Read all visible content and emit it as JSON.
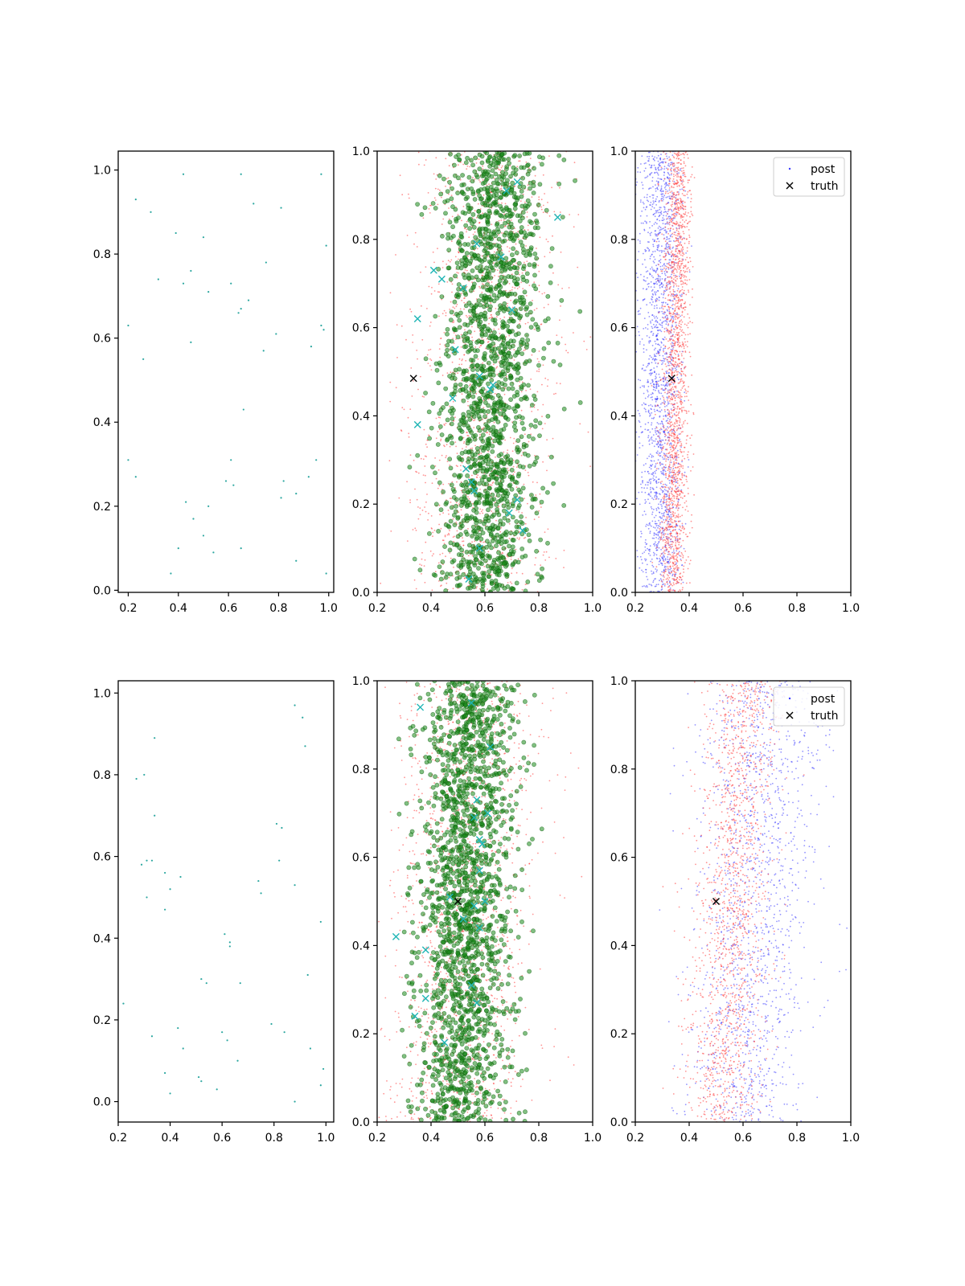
{
  "figure": {
    "layout": "2 rows x 3 columns of scatter panels"
  },
  "colors": {
    "observed": "#2ca7a0",
    "prior": "#ff3b3b",
    "samples": "#1a8a1a",
    "sample_markers": "#1fb5b5",
    "post": "#3b3bff",
    "truth": "#000000"
  },
  "chart_data": [
    {
      "type": "scatter",
      "panel": "row1-col1",
      "title": "",
      "xlabel": "",
      "ylabel": "",
      "xlim": [
        0.16,
        1.02
      ],
      "ylim": [
        -0.005,
        1.045
      ],
      "xticks": [
        "0.2",
        "0.4",
        "0.6",
        "0.8",
        "1.0"
      ],
      "yticks": [
        "0.0",
        "0.2",
        "0.4",
        "0.6",
        "0.8",
        "1.0"
      ],
      "grid": false,
      "series": [
        {
          "role": "observed",
          "x": [
            0.42,
            0.65,
            0.97,
            0.23,
            0.29,
            0.7,
            0.81,
            0.39,
            0.5,
            0.99,
            0.32,
            0.45,
            0.42,
            0.61,
            0.52,
            0.65,
            0.75,
            0.68,
            0.64,
            0.2,
            0.79,
            0.98,
            0.45,
            0.93,
            0.97,
            0.74,
            0.26,
            0.66,
            0.61,
            0.95,
            0.2,
            0.92,
            0.82,
            0.23,
            0.59,
            0.62,
            0.87,
            0.81,
            0.43,
            0.52,
            0.46,
            0.5,
            0.4,
            0.54,
            0.65,
            0.87,
            0.37,
            0.99
          ],
          "y": [
            0.99,
            0.99,
            0.99,
            0.93,
            0.9,
            0.92,
            0.91,
            0.85,
            0.84,
            0.82,
            0.74,
            0.76,
            0.73,
            0.73,
            0.71,
            0.67,
            0.78,
            0.69,
            0.66,
            0.63,
            0.61,
            0.62,
            0.59,
            0.58,
            0.63,
            0.57,
            0.55,
            0.43,
            0.31,
            0.31,
            0.31,
            0.27,
            0.26,
            0.27,
            0.26,
            0.25,
            0.23,
            0.22,
            0.21,
            0.2,
            0.17,
            0.13,
            0.1,
            0.09,
            0.1,
            0.07,
            0.04,
            0.04
          ]
        }
      ]
    },
    {
      "type": "scatter",
      "panel": "row1-col2",
      "title": "",
      "xlabel": "",
      "ylabel": "",
      "xlim": [
        0.2,
        1.0
      ],
      "ylim": [
        0.0,
        1.0
      ],
      "xticks": [
        "0.2",
        "0.4",
        "0.6",
        "0.8",
        "1.0"
      ],
      "yticks": [
        "0.0",
        "0.2",
        "0.4",
        "0.6",
        "0.8",
        "1.0"
      ],
      "grid": false,
      "series": [
        {
          "role": "prior",
          "distribution": {
            "x_mean": 0.6,
            "x_sd": 0.13,
            "y_range": [
              0.0,
              1.0
            ],
            "n": 1600,
            "x_slope": 0.06
          }
        },
        {
          "role": "samples",
          "distribution": {
            "x_mean": 0.62,
            "x_sd": 0.09,
            "y_range": [
              0.0,
              1.0
            ],
            "n": 1700,
            "x_slope": 0.05
          }
        },
        {
          "role": "sample_markers",
          "x": [
            0.87,
            0.41,
            0.44,
            0.57,
            0.52,
            0.68,
            0.72,
            0.35,
            0.48,
            0.62,
            0.63,
            0.7,
            0.35,
            0.49,
            0.53,
            0.55,
            0.56,
            0.72,
            0.74,
            0.58,
            0.54,
            0.58,
            0.66,
            0.69
          ],
          "y": [
            0.85,
            0.73,
            0.71,
            0.79,
            0.69,
            0.91,
            0.93,
            0.62,
            0.44,
            0.46,
            0.47,
            0.64,
            0.38,
            0.55,
            0.28,
            0.25,
            0.23,
            0.21,
            0.14,
            0.1,
            0.03,
            0.49,
            0.76,
            0.18
          ]
        },
        {
          "role": "truth",
          "x": [
            0.335
          ],
          "y": [
            0.485
          ]
        }
      ]
    },
    {
      "type": "scatter",
      "panel": "row1-col3",
      "title": "",
      "xlabel": "",
      "ylabel": "",
      "xlim": [
        0.2,
        1.0
      ],
      "ylim": [
        0.0,
        1.0
      ],
      "xticks": [
        "0.2",
        "0.4",
        "0.6",
        "0.8",
        "1.0"
      ],
      "yticks": [
        "0.0",
        "0.2",
        "0.4",
        "0.6",
        "0.8",
        "1.0"
      ],
      "grid": false,
      "legend": {
        "placement": "top-right",
        "entries": [
          {
            "role": "post",
            "label": "post"
          },
          {
            "role": "truth",
            "label": "truth"
          }
        ]
      },
      "series": [
        {
          "role": "post",
          "name": "post",
          "distribution": {
            "x_mean": 0.29,
            "x_sd": 0.04,
            "y_range": [
              0.0,
              1.0
            ],
            "n": 1800,
            "x_slope": 0.0
          }
        },
        {
          "role": "prior",
          "distribution": {
            "x_mean": 0.35,
            "x_sd": 0.025,
            "y_range": [
              0.0,
              1.0
            ],
            "n": 1800,
            "x_slope": 0.02
          }
        },
        {
          "role": "truth",
          "name": "truth",
          "x": [
            0.335
          ],
          "y": [
            0.485
          ]
        }
      ]
    },
    {
      "type": "scatter",
      "panel": "row2-col1",
      "title": "",
      "xlabel": "",
      "ylabel": "",
      "xlim": [
        0.2,
        1.03
      ],
      "ylim": [
        -0.05,
        1.03
      ],
      "xticks": [
        "0.2",
        "0.4",
        "0.6",
        "0.8",
        "1.0"
      ],
      "yticks": [
        "0.0",
        "0.2",
        "0.4",
        "0.6",
        "0.8",
        "1.0"
      ],
      "grid": false,
      "series": [
        {
          "role": "observed",
          "x": [
            0.88,
            0.91,
            0.34,
            0.92,
            0.3,
            0.27,
            0.34,
            0.81,
            0.83,
            0.82,
            0.31,
            0.29,
            0.33,
            0.38,
            0.44,
            0.74,
            0.75,
            0.4,
            0.31,
            0.38,
            0.88,
            0.98,
            0.61,
            0.63,
            0.63,
            0.52,
            0.54,
            0.67,
            0.93,
            0.22,
            0.79,
            0.43,
            0.84,
            0.6,
            0.33,
            0.62,
            0.45,
            0.94,
            0.66,
            0.99,
            0.51,
            0.38,
            0.52,
            0.58,
            0.4,
            0.88,
            0.98
          ],
          "y": [
            0.97,
            0.94,
            0.89,
            0.87,
            0.8,
            0.79,
            0.7,
            0.68,
            0.67,
            0.59,
            0.59,
            0.58,
            0.59,
            0.56,
            0.55,
            0.54,
            0.51,
            0.52,
            0.5,
            0.47,
            0.53,
            0.44,
            0.41,
            0.39,
            0.38,
            0.3,
            0.29,
            0.29,
            0.31,
            0.24,
            0.19,
            0.18,
            0.17,
            0.17,
            0.16,
            0.15,
            0.13,
            0.13,
            0.1,
            0.08,
            0.06,
            0.07,
            0.05,
            0.03,
            0.02,
            0.0,
            0.04
          ]
        }
      ]
    },
    {
      "type": "scatter",
      "panel": "row2-col2",
      "title": "",
      "xlabel": "",
      "ylabel": "",
      "xlim": [
        0.2,
        1.0
      ],
      "ylim": [
        0.0,
        1.0
      ],
      "xticks": [
        "0.2",
        "0.4",
        "0.6",
        "0.8",
        "1.0"
      ],
      "yticks": [
        "0.0",
        "0.2",
        "0.4",
        "0.6",
        "0.8",
        "1.0"
      ],
      "grid": false,
      "series": [
        {
          "role": "prior",
          "distribution": {
            "x_mean": 0.52,
            "x_sd": 0.13,
            "y_range": [
              0.0,
              1.0
            ],
            "n": 1600,
            "x_slope": 0.05
          }
        },
        {
          "role": "samples",
          "distribution": {
            "x_mean": 0.53,
            "x_sd": 0.085,
            "y_range": [
              0.0,
              1.0
            ],
            "n": 1800,
            "x_slope": 0.04
          }
        },
        {
          "role": "sample_markers",
          "x": [
            0.36,
            0.55,
            0.56,
            0.58,
            0.59,
            0.61,
            0.57,
            0.27,
            0.34,
            0.38,
            0.38,
            0.58,
            0.55,
            0.57,
            0.56,
            0.45,
            0.58,
            0.6,
            0.62,
            0.47,
            0.52
          ],
          "y": [
            0.94,
            0.95,
            0.69,
            0.64,
            0.63,
            0.7,
            0.73,
            0.42,
            0.24,
            0.28,
            0.39,
            0.44,
            0.31,
            0.27,
            0.49,
            0.18,
            0.57,
            0.5,
            0.85,
            0.51,
            0.46
          ]
        },
        {
          "role": "truth",
          "x": [
            0.5
          ],
          "y": [
            0.5
          ]
        }
      ]
    },
    {
      "type": "scatter",
      "panel": "row2-col3",
      "title": "",
      "xlabel": "",
      "ylabel": "",
      "xlim": [
        0.2,
        1.0
      ],
      "ylim": [
        0.0,
        1.0
      ],
      "xticks": [
        "0.2",
        "0.4",
        "0.6",
        "0.8",
        "1.0"
      ],
      "yticks": [
        "0.0",
        "0.2",
        "0.4",
        "0.6",
        "0.8",
        "1.0"
      ],
      "grid": false,
      "legend": {
        "placement": "top-right",
        "entries": [
          {
            "role": "post",
            "label": "post"
          },
          {
            "role": "truth",
            "label": "truth"
          }
        ]
      },
      "series": [
        {
          "role": "post",
          "name": "post",
          "distribution": {
            "x_mean": 0.64,
            "x_sd": 0.11,
            "y_range": [
              0.0,
              1.0
            ],
            "n": 1500,
            "x_slope": 0.08
          }
        },
        {
          "role": "prior",
          "distribution": {
            "x_mean": 0.56,
            "x_sd": 0.07,
            "y_range": [
              0.0,
              1.0
            ],
            "n": 1500,
            "x_slope": 0.09
          }
        },
        {
          "role": "truth",
          "name": "truth",
          "x": [
            0.5
          ],
          "y": [
            0.5
          ]
        }
      ]
    }
  ]
}
